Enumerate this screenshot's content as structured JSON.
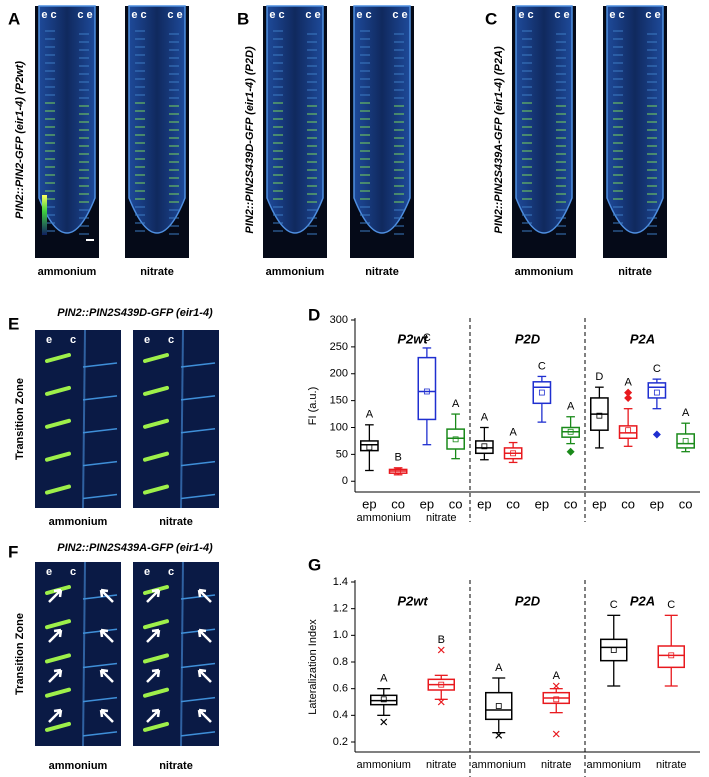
{
  "root_panels": [
    {
      "label": "A",
      "title": "PIN2::PIN2-GFP (eir1-4) (P2wt)",
      "images": [
        {
          "tags": [
            "e c",
            "c e"
          ],
          "condition": "ammonium"
        },
        {
          "tags": [
            "e c",
            "c e"
          ],
          "condition": "nitrate"
        }
      ]
    },
    {
      "label": "B",
      "title": "PIN2::PIN2S439D-GFP (eir1-4) (P2D)",
      "images": [
        {
          "tags": [
            "e c",
            "c e"
          ],
          "condition": "ammonium"
        },
        {
          "tags": [
            "e c",
            "c e"
          ],
          "condition": "nitrate"
        }
      ]
    },
    {
      "label": "C",
      "title": "PIN2::PIN2S439A-GFP (eir1-4) (P2A)",
      "images": [
        {
          "tags": [
            "e c",
            "c e"
          ],
          "condition": "ammonium"
        },
        {
          "tags": [
            "e c",
            "c e"
          ],
          "condition": "nitrate"
        }
      ]
    }
  ],
  "zone_panels": [
    {
      "label": "E",
      "title": "PIN2::PIN2S439D-GFP (eir1-4)",
      "side": "Transition Zone",
      "images": [
        {
          "tags": [
            "e",
            "c"
          ],
          "condition": "ammonium"
        },
        {
          "tags": [
            "e",
            "c"
          ],
          "condition": "nitrate"
        }
      ]
    },
    {
      "label": "F",
      "title": "PIN2::PIN2S439A-GFP (eir1-4)",
      "side": "Transition Zone",
      "images": [
        {
          "tags": [
            "e",
            "c"
          ],
          "condition": "ammonium"
        },
        {
          "tags": [
            "e",
            "c"
          ],
          "condition": "nitrate"
        }
      ]
    }
  ],
  "chart_data": [
    {
      "type": "box",
      "label": "D",
      "ylabel": "FI (a.u.)",
      "ylim": [
        -20,
        300
      ],
      "yticks": [
        0,
        50,
        100,
        150,
        200,
        250,
        300
      ],
      "groups": [
        "P2wt",
        "P2D",
        "P2A"
      ],
      "sublabels": [
        "ammonium",
        "nitrate"
      ],
      "categories": [
        "ep",
        "co",
        "ep",
        "co",
        "ep",
        "co",
        "ep",
        "co",
        "ep",
        "co",
        "ep",
        "co"
      ],
      "colors": [
        "#000000",
        "#e8191e",
        "#1f2fd0",
        "#1a8a1a",
        "#000000",
        "#e8191e",
        "#1f2fd0",
        "#1a8a1a",
        "#000000",
        "#e8191e",
        "#1f2fd0",
        "#1a8a1a"
      ],
      "low": [
        20,
        12,
        68,
        42,
        40,
        35,
        110,
        70,
        62,
        65,
        135,
        55
      ],
      "q1": [
        57,
        15,
        115,
        60,
        52,
        42,
        145,
        82,
        95,
        80,
        155,
        62
      ],
      "median": [
        68,
        19,
        167,
        80,
        62,
        52,
        175,
        92,
        125,
        90,
        175,
        70
      ],
      "q3": [
        75,
        22,
        230,
        97,
        75,
        62,
        185,
        100,
        155,
        103,
        183,
        88
      ],
      "high": [
        105,
        25,
        248,
        125,
        100,
        72,
        195,
        120,
        175,
        135,
        190,
        108
      ],
      "mean": [
        63,
        19,
        167,
        78,
        65,
        52,
        165,
        92,
        122,
        95,
        165,
        75
      ],
      "outliers": [
        [],
        [],
        [],
        [],
        [],
        [],
        [],
        [
          55
        ],
        [],
        [
          165,
          155
        ],
        [
          87
        ],
        []
      ],
      "outlier_marker": "diamond",
      "letters": [
        "A",
        "B",
        "C",
        "A",
        "A",
        "A",
        "C",
        "A",
        "D",
        "A",
        "C",
        "A"
      ]
    },
    {
      "type": "box",
      "label": "G",
      "ylabel": "Lateralization Index",
      "ylim": [
        0.125,
        1.4
      ],
      "yticks": [
        0.2,
        0.4,
        0.6,
        0.8,
        {
          "value": 1,
          "label": "1.0"
        },
        1.2,
        1.4
      ],
      "groups": [
        "P2wt",
        "P2D",
        "P2A"
      ],
      "categories": [
        "ammonium",
        "nitrate",
        "ammonium",
        "nitrate",
        "ammonium",
        "nitrate"
      ],
      "colors": [
        "#000000",
        "#e8191e",
        "#000000",
        "#e8191e",
        "#000000",
        "#e8191e"
      ],
      "low": [
        0.4,
        0.52,
        0.27,
        0.42,
        0.62,
        0.62
      ],
      "q1": [
        0.48,
        0.59,
        0.37,
        0.49,
        0.81,
        0.76
      ],
      "median": [
        0.51,
        0.63,
        0.44,
        0.53,
        0.91,
        0.85
      ],
      "q3": [
        0.55,
        0.67,
        0.57,
        0.57,
        0.97,
        0.92
      ],
      "high": [
        0.6,
        0.7,
        0.68,
        0.6,
        1.15,
        1.15
      ],
      "mean": [
        0.52,
        0.63,
        0.47,
        0.52,
        0.89,
        0.85
      ],
      "outliers": [
        [
          0.35
        ],
        [
          0.89,
          0.5
        ],
        [
          0.25
        ],
        [
          0.26,
          0.62
        ],
        [],
        []
      ],
      "outlier_marker": "x",
      "letters": [
        "A",
        "B",
        "A",
        "A",
        "C",
        "C"
      ]
    }
  ]
}
